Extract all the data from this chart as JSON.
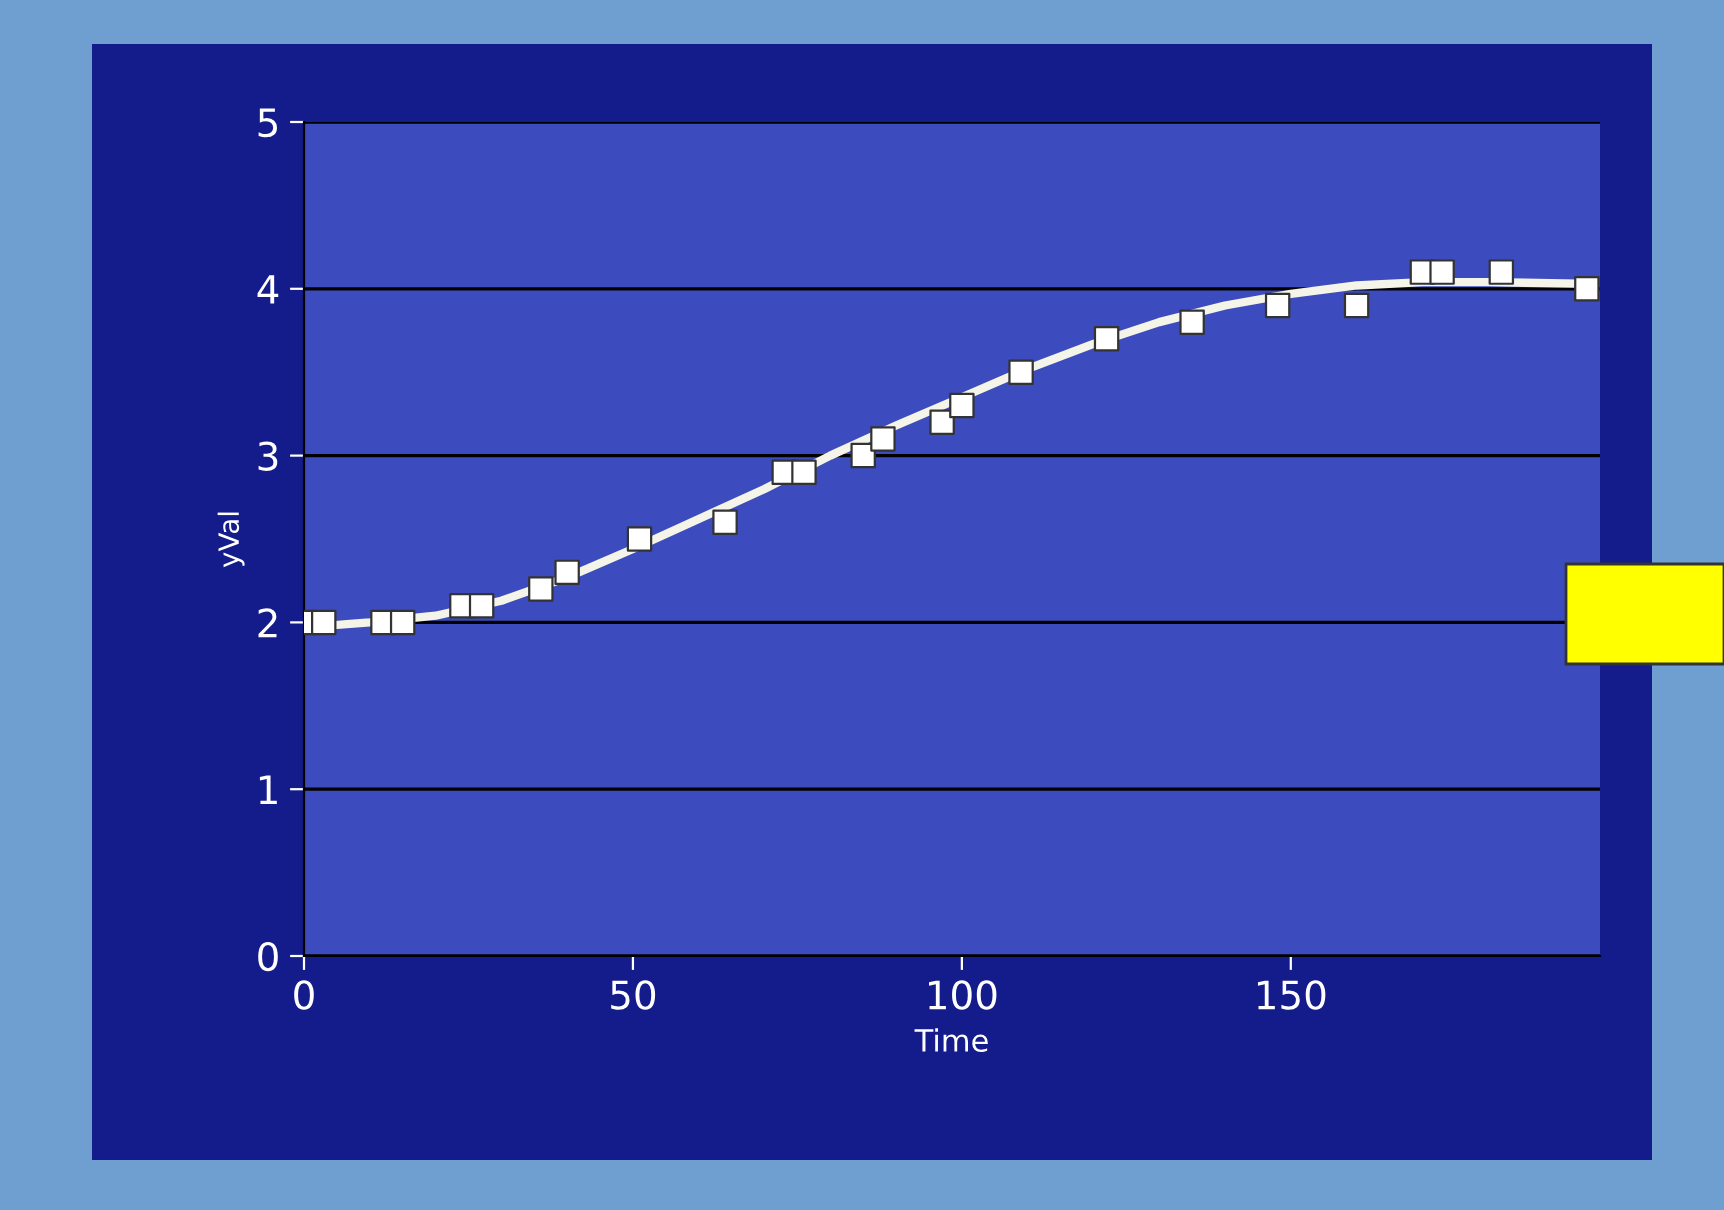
{
  "chart_data": {
    "type": "scatter",
    "xlabel": "Time",
    "ylabel": "yVal",
    "xlim": [
      0,
      197
    ],
    "xticks": [
      0,
      50,
      100,
      150
    ],
    "ylim": [
      0,
      5
    ],
    "yticks": [
      0,
      1,
      2,
      3,
      4,
      5
    ],
    "grid": "y",
    "series": [
      {
        "marker": "square",
        "color": "#ffffff",
        "x": [
          0,
          3,
          12,
          15,
          24,
          27,
          36,
          40,
          51,
          64,
          73,
          76,
          85,
          88,
          97,
          100,
          109,
          122,
          135,
          148,
          160,
          170,
          173,
          182,
          195
        ],
        "values": [
          2.0,
          2.0,
          2.0,
          2.0,
          2.1,
          2.1,
          2.2,
          2.3,
          2.5,
          2.6,
          2.9,
          2.9,
          3.0,
          3.1,
          3.2,
          3.3,
          3.5,
          3.7,
          3.8,
          3.9,
          3.9,
          4.1,
          4.1,
          4.1,
          4.0
        ]
      },
      {
        "type": "line",
        "marker": "none",
        "color": "#f4f4e8",
        "line_style": "solid",
        "x": [
          0,
          10,
          20,
          30,
          40,
          50,
          60,
          70,
          80,
          90,
          100,
          110,
          120,
          130,
          140,
          150,
          160,
          170,
          180,
          195
        ],
        "values": [
          1.97,
          2.0,
          2.04,
          2.13,
          2.27,
          2.44,
          2.62,
          2.8,
          3.0,
          3.18,
          3.35,
          3.52,
          3.67,
          3.8,
          3.9,
          3.97,
          4.02,
          4.04,
          4.04,
          4.03
        ]
      }
    ]
  }
}
